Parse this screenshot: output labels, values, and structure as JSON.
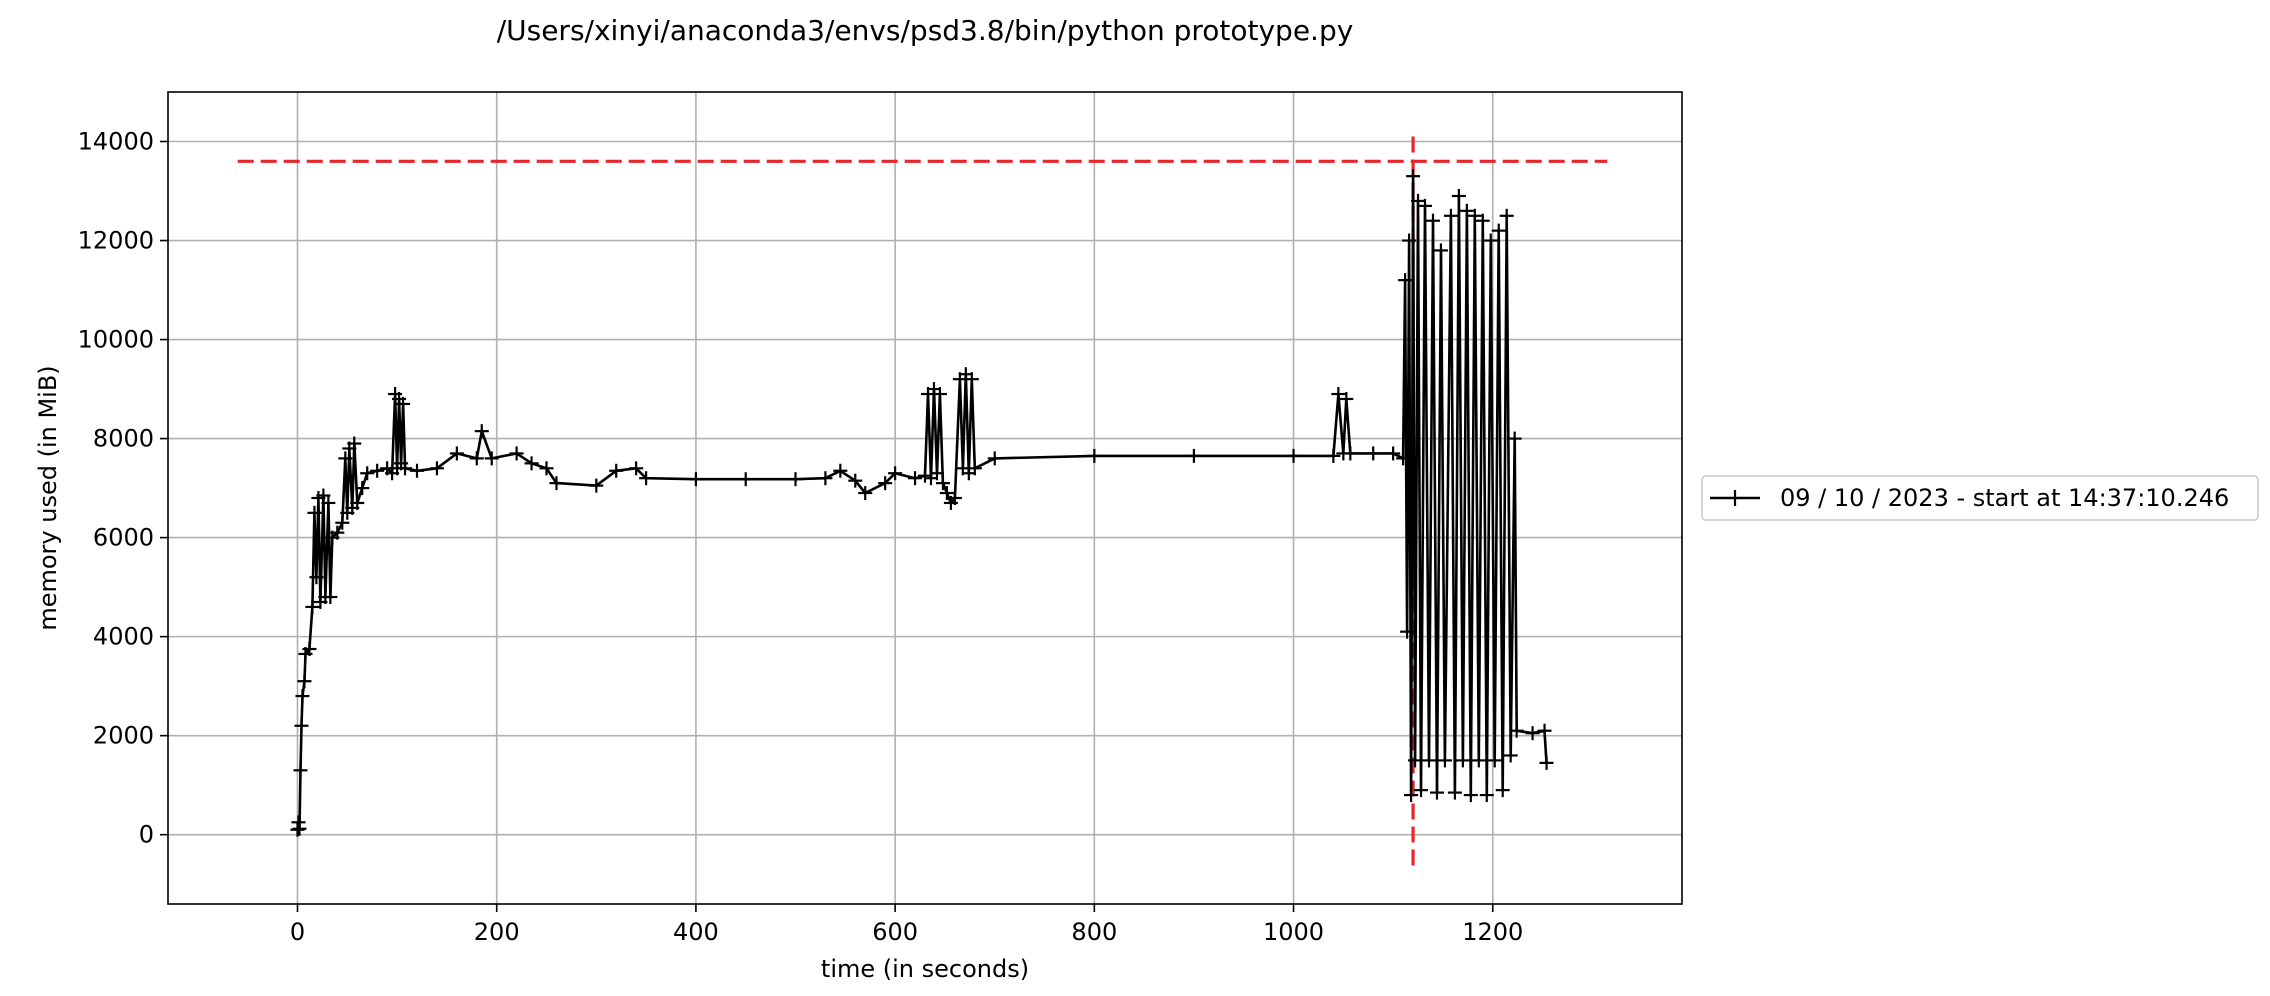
{
  "chart_data": {
    "type": "line",
    "title": "/Users/xinyi/anaconda3/envs/psd3.8/bin/python prototype.py",
    "xlabel": "time (in seconds)",
    "ylabel": "memory used (in MiB)",
    "xlim": [
      -130,
      1390
    ],
    "ylim": [
      -1400,
      15000
    ],
    "x_ticks": [
      0,
      200,
      400,
      600,
      800,
      1000,
      1200
    ],
    "y_ticks": [
      0,
      2000,
      4000,
      6000,
      8000,
      10000,
      12000,
      14000
    ],
    "grid": true,
    "legend_position": "outside-right",
    "colors": {
      "series": "#000000",
      "reference": "#e8262a",
      "grid": "#b0b0b0"
    },
    "series": [
      {
        "name": "09 / 10 / 2023 - start at 14:37:10.246",
        "marker": "plus",
        "points": [
          [
            0,
            100
          ],
          [
            1,
            250
          ],
          [
            2,
            120
          ],
          [
            3,
            1300
          ],
          [
            4,
            2200
          ],
          [
            5,
            2800
          ],
          [
            7,
            3100
          ],
          [
            8,
            3650
          ],
          [
            12,
            3750
          ],
          [
            15,
            4600
          ],
          [
            17,
            6500
          ],
          [
            19,
            5200
          ],
          [
            21,
            6800
          ],
          [
            23,
            4700
          ],
          [
            26,
            6850
          ],
          [
            28,
            4800
          ],
          [
            31,
            6700
          ],
          [
            33,
            4800
          ],
          [
            35,
            6000
          ],
          [
            40,
            6100
          ],
          [
            45,
            6300
          ],
          [
            48,
            7600
          ],
          [
            50,
            6500
          ],
          [
            52,
            7800
          ],
          [
            55,
            6600
          ],
          [
            57,
            7900
          ],
          [
            60,
            6700
          ],
          [
            65,
            7000
          ],
          [
            70,
            7300
          ],
          [
            80,
            7350
          ],
          [
            90,
            7400
          ],
          [
            95,
            7300
          ],
          [
            98,
            8900
          ],
          [
            100,
            7400
          ],
          [
            102,
            8800
          ],
          [
            104,
            7500
          ],
          [
            106,
            8700
          ],
          [
            108,
            7400
          ],
          [
            120,
            7350
          ],
          [
            140,
            7400
          ],
          [
            160,
            7700
          ],
          [
            180,
            7600
          ],
          [
            185,
            8150
          ],
          [
            195,
            7600
          ],
          [
            220,
            7700
          ],
          [
            235,
            7500
          ],
          [
            250,
            7400
          ],
          [
            260,
            7100
          ],
          [
            300,
            7050
          ],
          [
            320,
            7350
          ],
          [
            340,
            7400
          ],
          [
            350,
            7200
          ],
          [
            400,
            7180
          ],
          [
            450,
            7180
          ],
          [
            500,
            7180
          ],
          [
            530,
            7200
          ],
          [
            545,
            7350
          ],
          [
            560,
            7150
          ],
          [
            570,
            6900
          ],
          [
            590,
            7100
          ],
          [
            600,
            7300
          ],
          [
            620,
            7200
          ],
          [
            630,
            7250
          ],
          [
            633,
            8900
          ],
          [
            636,
            7200
          ],
          [
            639,
            9000
          ],
          [
            642,
            7300
          ],
          [
            645,
            8900
          ],
          [
            648,
            7100
          ],
          [
            652,
            6900
          ],
          [
            656,
            6700
          ],
          [
            660,
            6800
          ],
          [
            665,
            9200
          ],
          [
            668,
            7400
          ],
          [
            671,
            9300
          ],
          [
            674,
            7300
          ],
          [
            677,
            9200
          ],
          [
            680,
            7400
          ],
          [
            700,
            7600
          ],
          [
            800,
            7650
          ],
          [
            900,
            7650
          ],
          [
            1000,
            7650
          ],
          [
            1040,
            7650
          ],
          [
            1045,
            8900
          ],
          [
            1050,
            7700
          ],
          [
            1053,
            8800
          ],
          [
            1057,
            7700
          ],
          [
            1080,
            7700
          ],
          [
            1100,
            7700
          ],
          [
            1110,
            7600
          ],
          [
            1112,
            11200
          ],
          [
            1114,
            4100
          ],
          [
            1116,
            12000
          ],
          [
            1118,
            800
          ],
          [
            1120,
            13300
          ],
          [
            1122,
            1500
          ],
          [
            1125,
            12800
          ],
          [
            1128,
            900
          ],
          [
            1132,
            12700
          ],
          [
            1136,
            1500
          ],
          [
            1140,
            12400
          ],
          [
            1144,
            850
          ],
          [
            1148,
            11800
          ],
          [
            1152,
            1500
          ],
          [
            1158,
            12500
          ],
          [
            1162,
            850
          ],
          [
            1166,
            12900
          ],
          [
            1170,
            1500
          ],
          [
            1174,
            12600
          ],
          [
            1178,
            800
          ],
          [
            1182,
            12500
          ],
          [
            1186,
            1500
          ],
          [
            1190,
            12400
          ],
          [
            1194,
            800
          ],
          [
            1198,
            12000
          ],
          [
            1202,
            1500
          ],
          [
            1206,
            12200
          ],
          [
            1210,
            900
          ],
          [
            1214,
            12500
          ],
          [
            1218,
            1600
          ],
          [
            1222,
            8000
          ],
          [
            1224,
            2100
          ],
          [
            1240,
            2050
          ],
          [
            1252,
            2100
          ],
          [
            1254,
            1450
          ]
        ]
      }
    ],
    "reference_lines": [
      {
        "orientation": "horizontal",
        "y": 13600,
        "x_from": -60,
        "x_to": 1315
      },
      {
        "orientation": "vertical",
        "x": 1120,
        "y_from": -700,
        "y_to": 14100
      }
    ]
  }
}
